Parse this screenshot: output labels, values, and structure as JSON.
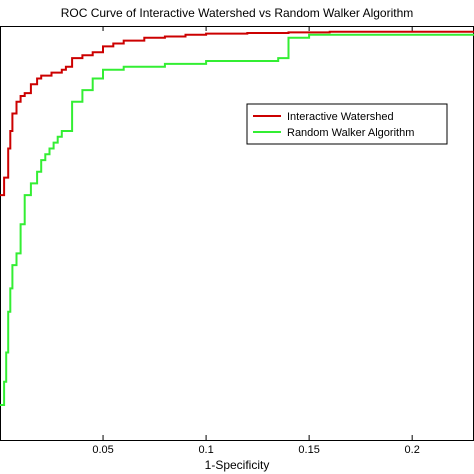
{
  "chart_data": {
    "type": "line",
    "title": "ROC Curve of Interactive Watershed vs Random Walker Algorithm",
    "xlabel": "1-Specificity",
    "ylabel": "",
    "xlim": [
      0,
      0.23
    ],
    "ylim": [
      0.3,
      1.01
    ],
    "xticks": [
      0.05,
      0.1,
      0.15,
      0.2
    ],
    "xtick_labels": [
      "0.05",
      "0.1",
      "0.15",
      "0.2"
    ],
    "grid": false,
    "legend_position": "upper-right-center",
    "series": [
      {
        "name": "Interactive Watershed",
        "color": "#cc0000",
        "x": [
          0,
          0.002,
          0.004,
          0.005,
          0.006,
          0.008,
          0.01,
          0.012,
          0.015,
          0.018,
          0.02,
          0.025,
          0.03,
          0.032,
          0.035,
          0.04,
          0.045,
          0.05,
          0.055,
          0.06,
          0.07,
          0.08,
          0.09,
          0.1,
          0.12,
          0.14,
          0.16,
          0.18,
          0.2,
          0.23
        ],
        "y": [
          0.72,
          0.75,
          0.8,
          0.83,
          0.86,
          0.88,
          0.89,
          0.895,
          0.91,
          0.92,
          0.925,
          0.93,
          0.935,
          0.94,
          0.955,
          0.96,
          0.965,
          0.975,
          0.98,
          0.985,
          0.99,
          0.992,
          0.995,
          0.997,
          0.998,
          0.999,
          1.0,
          1.0,
          1.0,
          1.0
        ]
      },
      {
        "name": "Random Walker Algorithm",
        "color": "#33ee33",
        "x": [
          0,
          0.002,
          0.003,
          0.004,
          0.005,
          0.006,
          0.008,
          0.01,
          0.012,
          0.015,
          0.018,
          0.02,
          0.022,
          0.024,
          0.026,
          0.028,
          0.03,
          0.035,
          0.04,
          0.045,
          0.05,
          0.06,
          0.08,
          0.1,
          0.12,
          0.135,
          0.14,
          0.15,
          0.18,
          0.2,
          0.23
        ],
        "y": [
          0.36,
          0.4,
          0.45,
          0.52,
          0.56,
          0.6,
          0.62,
          0.67,
          0.72,
          0.74,
          0.76,
          0.78,
          0.79,
          0.8,
          0.81,
          0.82,
          0.83,
          0.88,
          0.9,
          0.92,
          0.935,
          0.94,
          0.945,
          0.95,
          0.95,
          0.955,
          0.99,
          0.995,
          0.995,
          0.995,
          0.995
        ]
      }
    ]
  }
}
